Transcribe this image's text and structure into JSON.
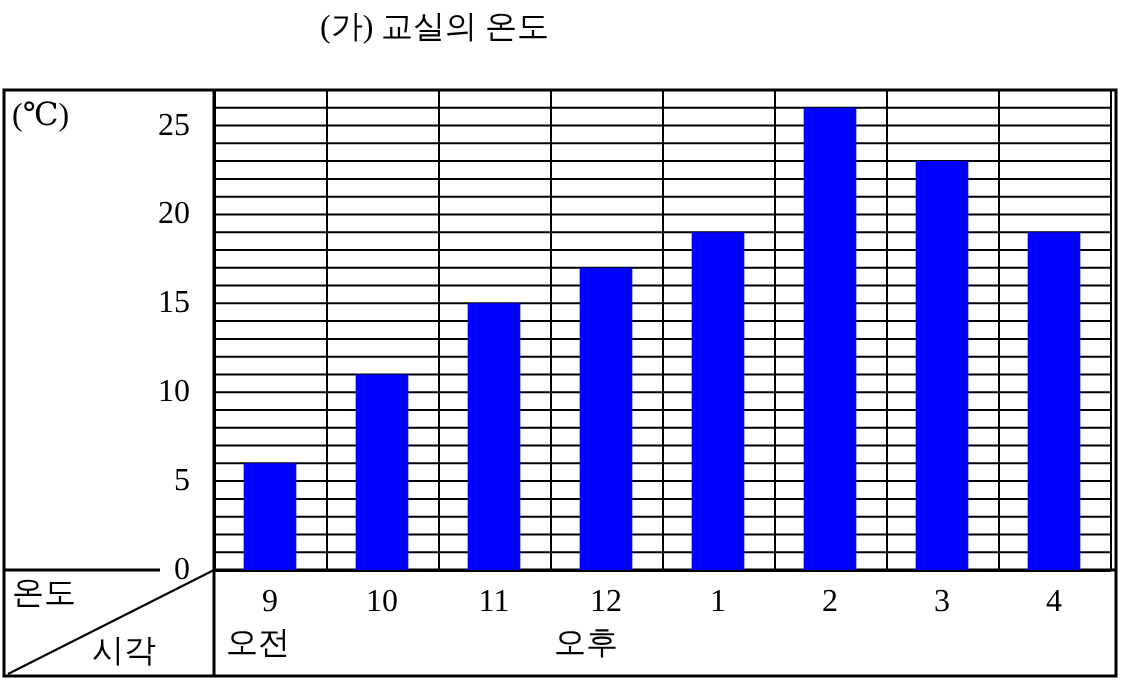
{
  "chart_data": {
    "type": "bar",
    "title": "(가) 교실의 온도",
    "xlabel": "시각",
    "ylabel": "(℃)",
    "annotations": [
      "온도",
      "오전",
      "오후"
    ],
    "categories": [
      "9",
      "10",
      "11",
      "12",
      "1",
      "2",
      "3",
      "4"
    ],
    "values": [
      6,
      11,
      15,
      17,
      19,
      26,
      23,
      19
    ],
    "color": "#0000ff",
    "ylim": [
      0,
      27
    ],
    "yticks": [
      0,
      {
        "value": 1,
        "label": null
      },
      {
        "value": 2,
        "label": null
      },
      {
        "value": 3,
        "label": null
      },
      {
        "value": 4,
        "label": null
      },
      5,
      {
        "value": 6,
        "label": null
      },
      {
        "value": 7,
        "label": null
      },
      {
        "value": 8,
        "label": null
      },
      {
        "value": 9,
        "label": null
      },
      10,
      {
        "value": 11,
        "label": null
      },
      {
        "value": 12,
        "label": null
      },
      {
        "value": 13,
        "label": null
      },
      {
        "value": 14,
        "label": null
      },
      15,
      {
        "value": 16,
        "label": null
      },
      {
        "value": 17,
        "label": null
      },
      {
        "value": 18,
        "label": null
      },
      {
        "value": 19,
        "label": null
      },
      20,
      {
        "value": 21,
        "label": null
      },
      {
        "value": 22,
        "label": null
      },
      {
        "value": 23,
        "label": null
      },
      {
        "value": 24,
        "label": null
      },
      25,
      {
        "value": 26,
        "label": null
      }
    ],
    "grid": true
  }
}
